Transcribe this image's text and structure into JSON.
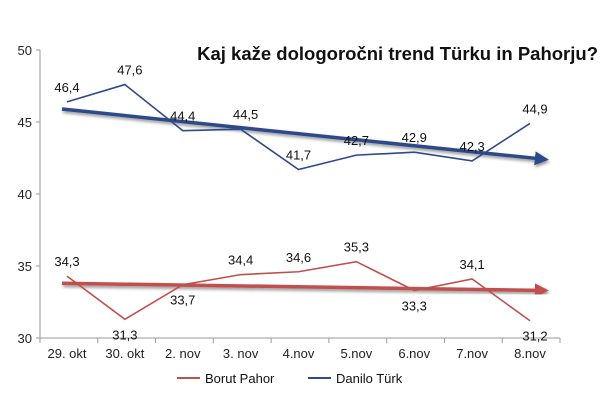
{
  "chart_data": {
    "type": "line",
    "title": "Kaj kaže dologoročni trend Türku in Pahorju?",
    "categories": [
      "29. okt",
      "30. okt",
      "2. nov",
      "3. nov",
      "4.nov",
      "5.nov",
      "6.nov",
      "7.nov",
      "8.nov"
    ],
    "ylim": [
      30,
      50
    ],
    "yticks": [
      30,
      35,
      40,
      45,
      50
    ],
    "grid": false,
    "legend_position": "bottom",
    "series": [
      {
        "name": "Borut Pahor",
        "color": "#c0504d",
        "values": [
          34.3,
          31.3,
          33.7,
          34.4,
          34.6,
          35.3,
          33.3,
          34.1,
          31.2
        ],
        "labels": [
          "34,3",
          "31,3",
          "33,7",
          "34,4",
          "34,6",
          "35,3",
          "33,3",
          "34,1",
          "31,2"
        ],
        "trend": [
          33.8,
          33.3
        ]
      },
      {
        "name": "Danilo Türk",
        "color": "#2e4a8a",
        "values": [
          46.4,
          47.6,
          44.4,
          44.5,
          41.7,
          42.7,
          42.9,
          42.3,
          44.9
        ],
        "labels": [
          "46,4",
          "47,6",
          "44,4",
          "44,5",
          "41,7",
          "42,7",
          "42,9",
          "42,3",
          "44,9"
        ],
        "trend": [
          45.9,
          42.4
        ]
      }
    ]
  }
}
